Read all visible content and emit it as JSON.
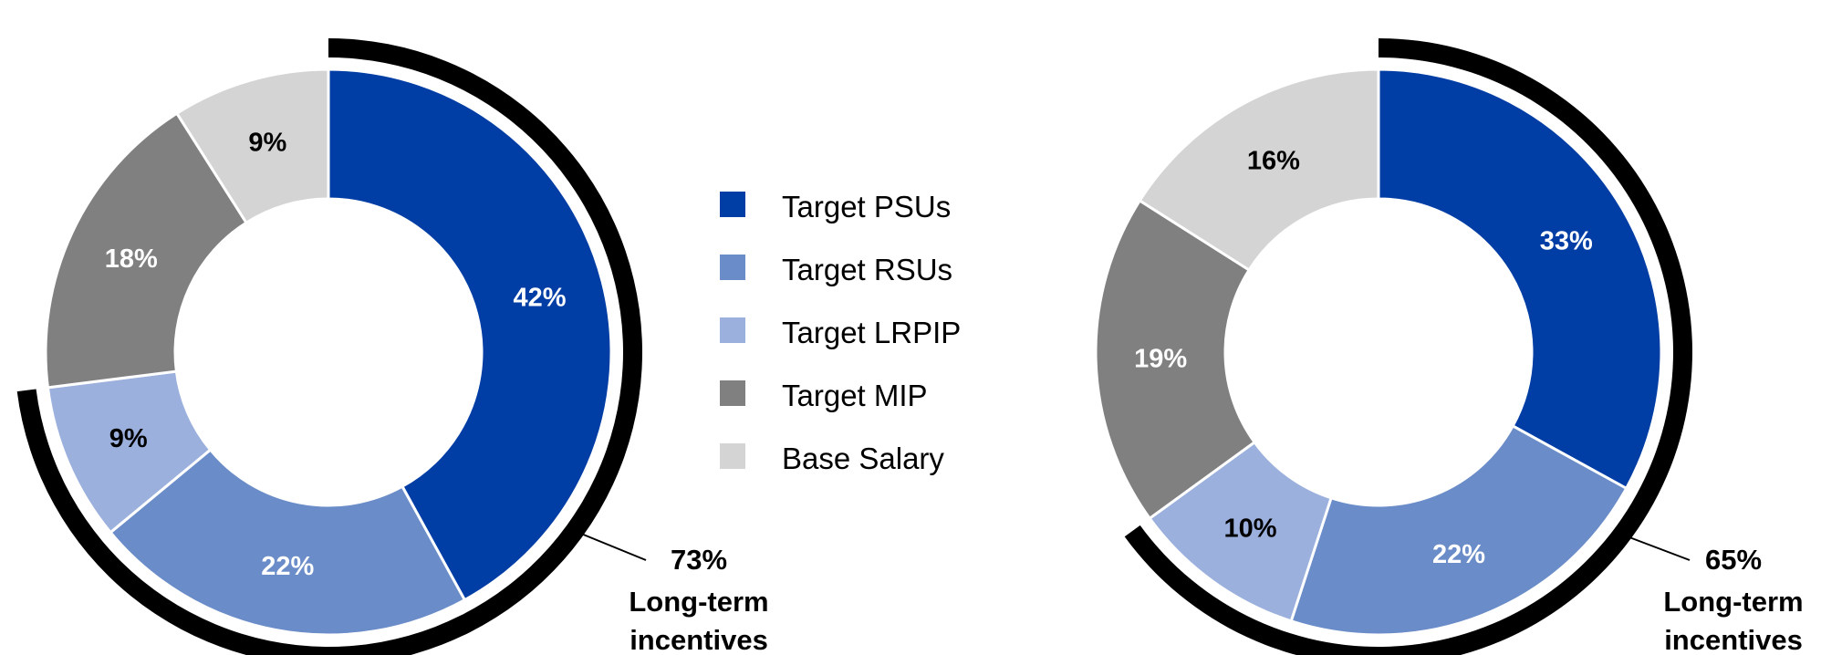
{
  "legend": [
    {
      "label": "Target PSUs",
      "color": "#003DA5"
    },
    {
      "label": "Target RSUs",
      "color": "#6A8CC8"
    },
    {
      "label": "Target LRPIP",
      "color": "#9BB0DD"
    },
    {
      "label": "Target MIP",
      "color": "#808080"
    },
    {
      "label": "Base Salary",
      "color": "#D4D4D4"
    }
  ],
  "chart_data": [
    {
      "type": "pie",
      "categories": [
        "Target PSUs",
        "Target RSUs",
        "Target LRPIP",
        "Target MIP",
        "Base Salary"
      ],
      "values": [
        42,
        22,
        9,
        18,
        9
      ],
      "labels": [
        "42%",
        "22%",
        "9%",
        "18%",
        "9%"
      ],
      "label_colors": [
        "#ffffff",
        "#ffffff",
        "#000000",
        "#ffffff",
        "#000000"
      ],
      "colors": [
        "#003DA5",
        "#6A8CC8",
        "#9BB0DD",
        "#808080",
        "#D4D4D4"
      ],
      "highlight": {
        "value": "73%",
        "line1": "Long-term",
        "line2": "incentives",
        "covers": [
          "Target PSUs",
          "Target RSUs",
          "Target LRPIP"
        ]
      }
    },
    {
      "type": "pie",
      "categories": [
        "Target PSUs",
        "Target RSUs",
        "Target LRPIP",
        "Target MIP",
        "Base Salary"
      ],
      "values": [
        33,
        22,
        10,
        19,
        16
      ],
      "labels": [
        "33%",
        "22%",
        "10%",
        "19%",
        "16%"
      ],
      "label_colors": [
        "#ffffff",
        "#ffffff",
        "#000000",
        "#ffffff",
        "#000000"
      ],
      "colors": [
        "#003DA5",
        "#6A8CC8",
        "#9BB0DD",
        "#808080",
        "#D4D4D4"
      ],
      "highlight": {
        "value": "65%",
        "line1": "Long-term",
        "line2": "incentives",
        "covers": [
          "Target PSUs",
          "Target RSUs",
          "Target LRPIP"
        ]
      }
    }
  ]
}
